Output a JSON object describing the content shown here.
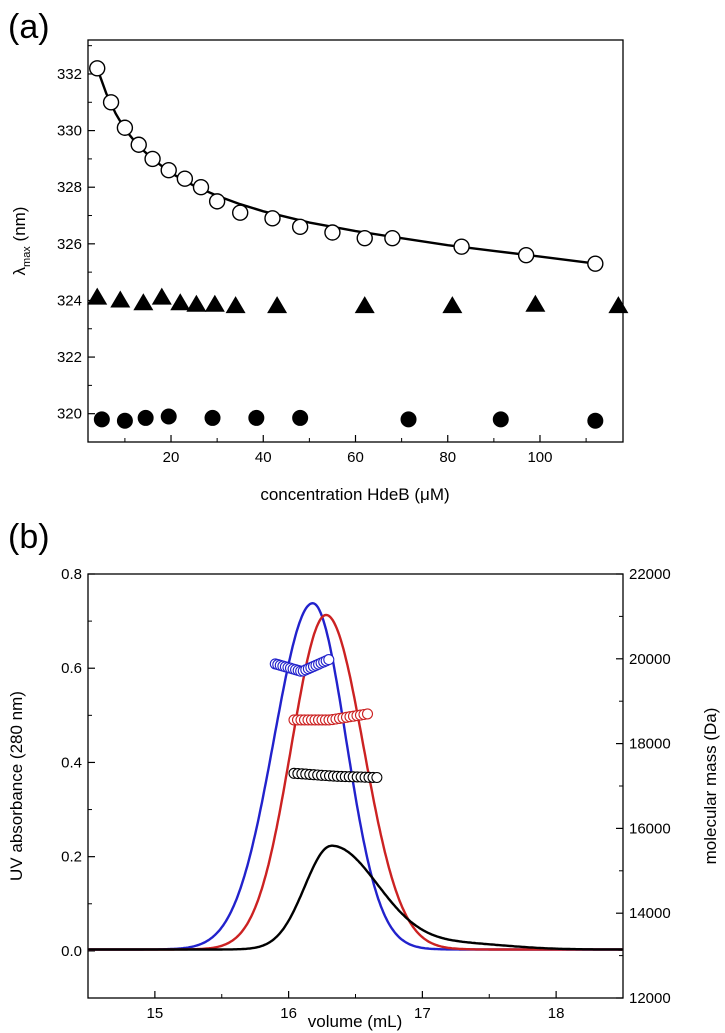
{
  "chart_data": [
    {
      "panel_label": "(a)",
      "type": "scatter",
      "xlabel": "concentration HdeB (μM)",
      "ylabel": {
        "main": "λ",
        "sub": "max",
        "unit": " (nm)"
      },
      "xlim": [
        2,
        118
      ],
      "ylim": [
        319,
        333.2
      ],
      "x_ticks": [
        20,
        40,
        60,
        80,
        100
      ],
      "y_ticks": [
        320,
        322,
        324,
        326,
        328,
        330,
        332
      ],
      "series": [
        {
          "name": "open circles",
          "marker": "open-circle",
          "color": "#000000",
          "x": [
            4,
            7,
            10,
            13,
            16,
            19.5,
            23,
            26.5,
            30,
            35,
            42,
            48,
            55,
            62,
            68,
            83,
            97,
            112
          ],
          "y": [
            332.2,
            331.0,
            330.1,
            329.5,
            329.0,
            328.6,
            328.3,
            328.0,
            327.5,
            327.1,
            326.9,
            326.6,
            326.4,
            326.2,
            326.2,
            325.9,
            325.6,
            325.3
          ]
        },
        {
          "name": "triangles",
          "marker": "filled-triangle",
          "color": "#000000",
          "x": [
            4,
            9,
            14,
            18,
            22,
            25.5,
            29.5,
            34,
            43,
            62,
            81,
            99,
            117
          ],
          "y": [
            324.1,
            324.0,
            323.9,
            324.1,
            323.9,
            323.85,
            323.85,
            323.8,
            323.8,
            323.8,
            323.8,
            323.85,
            323.8
          ]
        },
        {
          "name": "filled circles",
          "marker": "filled-circle",
          "color": "#000000",
          "x": [
            5,
            10,
            14.5,
            19.5,
            29,
            38.5,
            48,
            71.5,
            91.5,
            112
          ],
          "y": [
            319.8,
            319.75,
            319.85,
            319.9,
            319.85,
            319.85,
            319.85,
            319.8,
            319.8,
            319.75
          ]
        }
      ],
      "fit_line": {
        "color": "#000000",
        "x": [
          4,
          6,
          8,
          10,
          13,
          16,
          20,
          25,
          30,
          35,
          40,
          50,
          60,
          70,
          80,
          90,
          100,
          112
        ],
        "y": [
          332.2,
          331.3,
          330.6,
          330.05,
          329.45,
          329.0,
          328.5,
          328.05,
          327.7,
          327.4,
          327.15,
          326.75,
          326.45,
          326.2,
          325.95,
          325.75,
          325.55,
          325.3
        ]
      }
    },
    {
      "panel_label": "(b)",
      "type": "line",
      "xlabel": "volume (mL)",
      "ylabel_left": "UV absorbance (280 nm)",
      "ylabel_right": "molecular mass (Da)",
      "xlim": [
        14.5,
        18.5
      ],
      "ylim_left": [
        -0.1,
        0.8
      ],
      "ylim_right": [
        12000,
        22000
      ],
      "x_ticks": [
        15,
        16,
        17,
        18
      ],
      "y_ticks_left": [
        "0.0",
        "0.2",
        "0.4",
        "0.6",
        "0.8"
      ],
      "y_ticks_right": [
        "12000",
        "14000",
        "16000",
        "18000",
        "20000",
        "22000"
      ],
      "uv_series": [
        {
          "name": "blue",
          "color": "#2222cc",
          "peak_x": 16.18,
          "peak_y": 0.735,
          "width_left": 0.29,
          "width_right": 0.25
        },
        {
          "name": "red",
          "color": "#cc2222",
          "peak_x": 16.28,
          "peak_y": 0.71,
          "width_left": 0.26,
          "width_right": 0.28
        },
        {
          "name": "black",
          "color": "#000000",
          "peak_x": 16.32,
          "peak_y": 0.22,
          "width_left": 0.2,
          "width_right": 0.35
        }
      ],
      "mass_series": [
        {
          "name": "blue",
          "color": "#2222cc",
          "x_start": 15.9,
          "x_end": 16.3,
          "mass_start": 19880,
          "mass_mid": 19700,
          "mass_end": 19980
        },
        {
          "name": "red",
          "color": "#cc2222",
          "x_start": 16.04,
          "x_end": 16.59,
          "mass_start": 18560,
          "mass_mid": 18560,
          "mass_end": 18700
        },
        {
          "name": "black",
          "color": "#000000",
          "x_start": 16.04,
          "x_end": 16.66,
          "mass_start": 17300,
          "mass_mid": 17230,
          "mass_end": 17200
        }
      ]
    }
  ]
}
